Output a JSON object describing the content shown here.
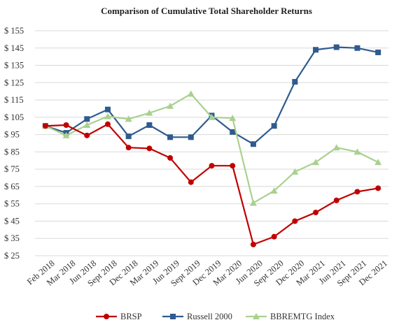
{
  "chart_data": {
    "type": "line",
    "title": "Comparison of Cumulative Total Shareholder Returns",
    "xlabel": "",
    "ylabel": "",
    "categories": [
      "Feb 2018",
      "Mar 2018",
      "Jun 2018",
      "Sept 2018",
      "Dec 2018",
      "Mar 2019",
      "Jun 2019",
      "Sept 2019",
      "Dec 2019",
      "Mar 2020",
      "Jun 2020",
      "Sept 2020",
      "Dec 2020",
      "Mar 2021",
      "Jun 2021",
      "Sept 2021",
      "Dec 2021"
    ],
    "ylim": [
      25,
      155
    ],
    "yticks": [
      25,
      35,
      45,
      55,
      65,
      75,
      85,
      95,
      105,
      115,
      125,
      135,
      145,
      155
    ],
    "ytick_labels": [
      "$ 25",
      "$ 35",
      "$ 45",
      "$ 55",
      "$ 65",
      "$ 75",
      "$ 85",
      "$ 95",
      "$ 105",
      "$ 115",
      "$ 125",
      "$ 135",
      "$ 145",
      "$ 155"
    ],
    "grid": true,
    "legend_position": "bottom",
    "series": [
      {
        "name": "BRSP",
        "color": "#c00000",
        "marker": "circle",
        "values": [
          100,
          100.5,
          94.5,
          101,
          87.5,
          87,
          81.5,
          67.5,
          77,
          77,
          31.5,
          36,
          45,
          50,
          57,
          62,
          64
        ]
      },
      {
        "name": "Russell 2000",
        "color": "#2f5b8e",
        "marker": "square",
        "values": [
          100,
          96,
          104,
          109.5,
          94,
          100.5,
          93.5,
          93.5,
          106,
          96.5,
          89.5,
          100,
          125.5,
          144,
          145.5,
          145,
          142.5
        ]
      },
      {
        "name": "BBREMTG Index",
        "color": "#a9d18e",
        "marker": "triangle",
        "values": [
          100,
          94.5,
          100.5,
          105.5,
          104,
          107.5,
          111.5,
          118.5,
          105,
          104.5,
          55.5,
          62.5,
          73.5,
          79,
          87.5,
          85,
          79
        ]
      }
    ]
  }
}
